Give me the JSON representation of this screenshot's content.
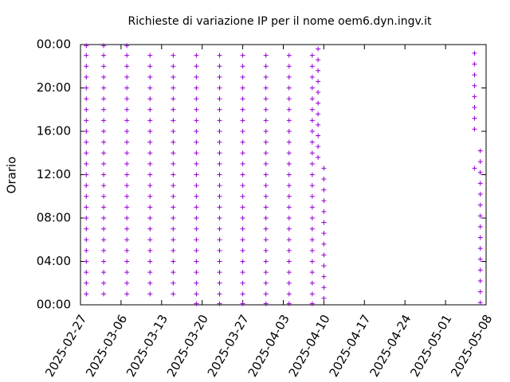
{
  "chart_data": {
    "type": "scatter",
    "title": "Richieste di variazione IP per il nome oem6.dyn.ingv.it",
    "y_label": "Orario",
    "xlim": [
      "2025-02-27",
      "2025-05-08"
    ],
    "xticks": [
      "2025-02-27",
      "2025-03-06",
      "2025-03-13",
      "2025-03-20",
      "2025-03-27",
      "2025-04-03",
      "2025-04-10",
      "2025-04-17",
      "2025-04-24",
      "2025-05-01",
      "2025-05-08"
    ],
    "ylim": [
      0,
      24
    ],
    "yticks": [
      {
        "value": 0,
        "label": "00:00"
      },
      {
        "value": 4,
        "label": "04:00"
      },
      {
        "value": 8,
        "label": "08:00"
      },
      {
        "value": 12,
        "label": "12:00"
      },
      {
        "value": 16,
        "label": "16:00"
      },
      {
        "value": 20,
        "label": "20:00"
      },
      {
        "value": 24,
        "label": "00:00"
      }
    ],
    "x": [
      "2025-02-28",
      "2025-03-03",
      "2025-03-07",
      "2025-03-11",
      "2025-03-15",
      "2025-03-19",
      "2025-03-23",
      "2025-03-27",
      "2025-03-31",
      "2025-04-04",
      "2025-04-08"
    ],
    "series": [
      {
        "color": "#9400d3",
        "values": [
          null,
          null,
          null,
          null,
          null,
          0.1,
          0.1,
          0.1,
          0.1,
          0.1,
          0.1
        ]
      },
      {
        "color": "#9400d3",
        "values": [
          1,
          1,
          1,
          1,
          1,
          1,
          1,
          1,
          1,
          1,
          1
        ]
      },
      {
        "color": "#9400d3",
        "values": [
          2,
          2,
          2,
          2,
          2,
          2,
          2,
          2,
          2,
          2,
          2
        ]
      },
      {
        "color": "#9400d3",
        "values": [
          3,
          3,
          3,
          3,
          3,
          3,
          3,
          3,
          3,
          3,
          3
        ]
      },
      {
        "color": "#9400d3",
        "values": [
          4,
          4,
          4,
          4,
          4,
          4,
          4,
          4,
          4,
          4,
          4
        ]
      },
      {
        "color": "#9400d3",
        "values": [
          5,
          5,
          5,
          5,
          5,
          5,
          5,
          5,
          5,
          5,
          5
        ]
      },
      {
        "color": "#9400d3",
        "values": [
          6,
          6,
          6,
          6,
          6,
          6,
          6,
          6,
          6,
          6,
          6
        ]
      },
      {
        "color": "#9400d3",
        "values": [
          7,
          7,
          7,
          7,
          7,
          7,
          7,
          7,
          7,
          7,
          7
        ]
      },
      {
        "color": "#9400d3",
        "values": [
          8,
          8,
          8,
          8,
          8,
          8,
          8,
          8,
          8,
          8,
          8
        ]
      },
      {
        "color": "#9400d3",
        "values": [
          9,
          9,
          9,
          9,
          9,
          9,
          9,
          9,
          9,
          9,
          9
        ]
      },
      {
        "color": "#9400d3",
        "values": [
          10,
          10,
          10,
          10,
          10,
          10,
          10,
          10,
          10,
          10,
          10
        ]
      },
      {
        "color": "#9400d3",
        "values": [
          11,
          11,
          11,
          11,
          11,
          11,
          11,
          11,
          11,
          11,
          11
        ]
      },
      {
        "color": "#9400d3",
        "values": [
          12,
          12,
          12,
          12,
          12,
          12,
          12,
          12,
          12,
          12,
          12
        ]
      },
      {
        "color": "#9400d3",
        "values": [
          13,
          13,
          13,
          13,
          13,
          13,
          13,
          13,
          13,
          13,
          13
        ]
      },
      {
        "color": "#9400d3",
        "values": [
          14,
          14,
          14,
          14,
          14,
          14,
          14,
          14,
          14,
          14,
          14
        ]
      },
      {
        "color": "#9400d3",
        "values": [
          15,
          15,
          15,
          15,
          15,
          15,
          15,
          15,
          15,
          15,
          15
        ]
      },
      {
        "color": "#9400d3",
        "values": [
          16,
          16,
          16,
          16,
          16,
          16,
          16,
          16,
          16,
          16,
          16
        ]
      },
      {
        "color": "#9400d3",
        "values": [
          17,
          17,
          17,
          17,
          17,
          17,
          17,
          17,
          17,
          17,
          17
        ]
      },
      {
        "color": "#9400d3",
        "values": [
          18,
          18,
          18,
          18,
          18,
          18,
          18,
          18,
          18,
          18,
          18
        ]
      },
      {
        "color": "#9400d3",
        "values": [
          19,
          19,
          19,
          19,
          19,
          19,
          19,
          19,
          19,
          19,
          19
        ]
      },
      {
        "color": "#9400d3",
        "values": [
          20,
          20,
          20,
          20,
          20,
          20,
          20,
          20,
          20,
          20,
          20
        ]
      },
      {
        "color": "#9400d3",
        "values": [
          21,
          21,
          21,
          21,
          21,
          21,
          21,
          21,
          21,
          21,
          21
        ]
      },
      {
        "color": "#9400d3",
        "values": [
          22,
          22,
          22,
          22,
          22,
          22,
          22,
          22,
          22,
          22,
          22
        ]
      },
      {
        "color": "#9400d3",
        "values": [
          23,
          23,
          23,
          23,
          23,
          23,
          23,
          23,
          23,
          23,
          23
        ]
      },
      {
        "color": "#9400d3",
        "values": [
          23.9,
          23.9,
          23.9,
          null,
          null,
          null,
          null,
          null,
          null,
          null,
          null
        ]
      },
      {
        "color": "#9400d3",
        "x": [
          "2025-04-09",
          "2025-04-09",
          "2025-04-09",
          "2025-04-09",
          "2025-04-09",
          "2025-04-09",
          "2025-04-09",
          "2025-04-09",
          "2025-04-09",
          "2025-04-09",
          "2025-04-09",
          "2025-04-10",
          "2025-04-10",
          "2025-04-10",
          "2025-04-10",
          "2025-04-10",
          "2025-04-10",
          "2025-04-10",
          "2025-04-10",
          "2025-04-10",
          "2025-04-10",
          "2025-04-10",
          "2025-04-10",
          "2025-04-10"
        ],
        "values": [
          13.6,
          14.6,
          15.6,
          16.6,
          17.6,
          18.6,
          19.6,
          20.6,
          21.6,
          22.6,
          23.6,
          0.6,
          1.6,
          2.6,
          3.6,
          4.6,
          5.6,
          6.6,
          7.6,
          8.6,
          9.6,
          10.6,
          11.6,
          12.6
        ]
      },
      {
        "color": "#9400d3",
        "x": [
          "2025-05-06",
          "2025-05-06",
          "2025-05-06",
          "2025-05-06",
          "2025-05-06",
          "2025-05-06",
          "2025-05-06",
          "2025-05-06",
          "2025-05-06",
          "2025-05-07",
          "2025-05-07",
          "2025-05-07",
          "2025-05-07",
          "2025-05-07",
          "2025-05-07",
          "2025-05-07",
          "2025-05-07",
          "2025-05-07",
          "2025-05-07",
          "2025-05-07",
          "2025-05-07",
          "2025-05-07",
          "2025-05-07",
          "2025-05-07"
        ],
        "values": [
          12.6,
          16.2,
          17.2,
          18.2,
          19.2,
          20.2,
          21.2,
          22.2,
          23.2,
          0.2,
          1.2,
          2.2,
          3.2,
          4.2,
          5.2,
          6.2,
          7.2,
          8.2,
          9.2,
          10.2,
          11.2,
          12.2,
          13.2,
          14.2
        ]
      }
    ]
  }
}
